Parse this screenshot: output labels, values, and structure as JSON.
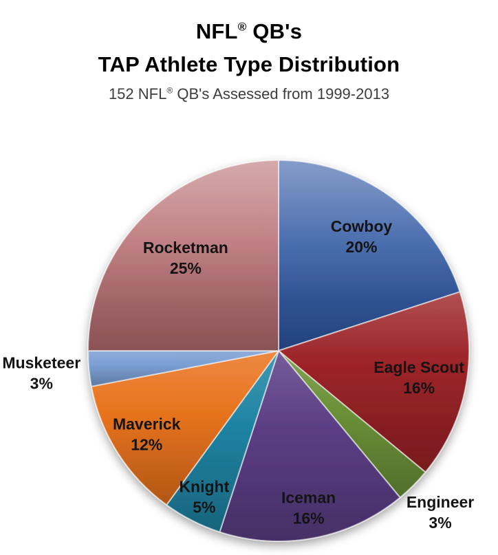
{
  "chart_data": {
    "type": "pie",
    "title": "NFL® QB's TAP Athlete Type Distribution",
    "title_line1": "NFL® QB's",
    "title_line2": "TAP Athlete Type Distribution",
    "subtitle": "152 NFL® QB's Assessed from 1999-2013",
    "total_assessed": 152,
    "unit": "percent",
    "start_angle_deg": 0,
    "direction": "clockwise",
    "categories": [
      "Cowboy",
      "Eagle Scout",
      "Engineer",
      "Iceman",
      "Knight",
      "Maverick",
      "Musketeer",
      "Rocketman"
    ],
    "values": [
      20,
      16,
      3,
      16,
      5,
      12,
      3,
      25
    ],
    "colors": [
      "#2D56A2",
      "#9C2428",
      "#6B9138",
      "#5B3E85",
      "#1F84A3",
      "#E8731E",
      "#7B9FD4",
      "#B66C70"
    ],
    "label_color": "#141414",
    "background": "#ffffff",
    "legend": "none",
    "layout": {
      "center": [
        405,
        510
      ],
      "radius": 277,
      "label_radius_fraction": [
        0.74,
        0.75,
        1.2,
        0.84,
        0.86,
        0.82,
        1.25,
        0.69
      ],
      "label_inside": [
        true,
        true,
        false,
        true,
        true,
        true,
        false,
        true
      ]
    }
  }
}
